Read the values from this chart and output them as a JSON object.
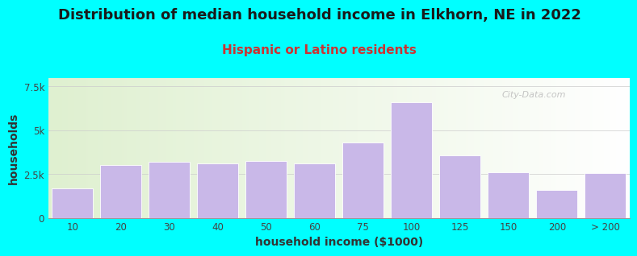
{
  "title": "Distribution of median household income in Elkhorn, NE in 2022",
  "subtitle": "Hispanic or Latino residents",
  "xlabel": "household income ($1000)",
  "ylabel": "households",
  "background_color": "#00FFFF",
  "plot_bg_color_left": "#dff0d0",
  "plot_bg_color_right": "#ffffff",
  "bar_color": "#c9b8e8",
  "bar_edge_color": "#ffffff",
  "categories": [
    "10",
    "20",
    "30",
    "40",
    "50",
    "60",
    "75",
    "100",
    "125",
    "150",
    "200",
    "> 200"
  ],
  "values": [
    1700,
    3000,
    3200,
    3100,
    3250,
    3100,
    4300,
    6600,
    3550,
    2600,
    1600,
    2550
  ],
  "ylim": [
    0,
    8000
  ],
  "yticks": [
    0,
    2500,
    5000,
    7500
  ],
  "ytick_labels": [
    "0",
    "2.5k",
    "5k",
    "7.5k"
  ],
  "watermark": "City-Data.com",
  "title_fontsize": 13,
  "subtitle_fontsize": 11,
  "axis_label_fontsize": 10,
  "tick_fontsize": 8.5,
  "title_color": "#1a1a1a",
  "subtitle_color": "#cc3333"
}
